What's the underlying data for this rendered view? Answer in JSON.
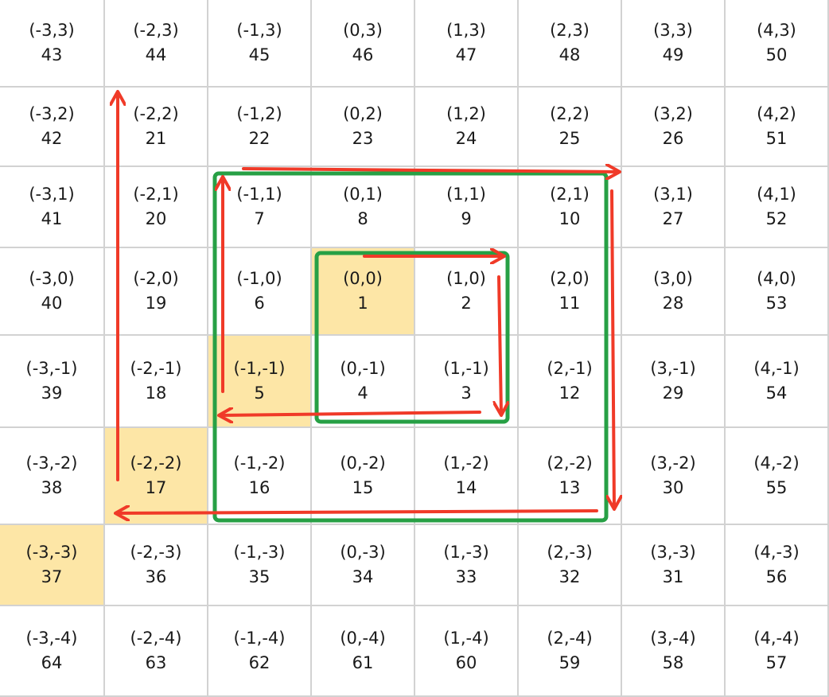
{
  "rows": [
    [
      {
        "coord": "(-3,3)",
        "num": "43"
      },
      {
        "coord": "(-2,3)",
        "num": "44"
      },
      {
        "coord": "(-1,3)",
        "num": "45"
      },
      {
        "coord": "(0,3)",
        "num": "46"
      },
      {
        "coord": "(1,3)",
        "num": "47"
      },
      {
        "coord": "(2,3)",
        "num": "48"
      },
      {
        "coord": "(3,3)",
        "num": "49"
      },
      {
        "coord": "(4,3)",
        "num": "50"
      }
    ],
    [
      {
        "coord": "(-3,2)",
        "num": "42"
      },
      {
        "coord": "(-2,2)",
        "num": "21"
      },
      {
        "coord": "(-1,2)",
        "num": "22"
      },
      {
        "coord": "(0,2)",
        "num": "23"
      },
      {
        "coord": "(1,2)",
        "num": "24"
      },
      {
        "coord": "(2,2)",
        "num": "25"
      },
      {
        "coord": "(3,2)",
        "num": "26"
      },
      {
        "coord": "(4,2)",
        "num": "51"
      }
    ],
    [
      {
        "coord": "(-3,1)",
        "num": "41"
      },
      {
        "coord": "(-2,1)",
        "num": "20"
      },
      {
        "coord": "(-1,1)",
        "num": "7"
      },
      {
        "coord": "(0,1)",
        "num": "8"
      },
      {
        "coord": "(1,1)",
        "num": "9"
      },
      {
        "coord": "(2,1)",
        "num": "10"
      },
      {
        "coord": "(3,1)",
        "num": "27"
      },
      {
        "coord": "(4,1)",
        "num": "52"
      }
    ],
    [
      {
        "coord": "(-3,0)",
        "num": "40"
      },
      {
        "coord": "(-2,0)",
        "num": "19"
      },
      {
        "coord": "(-1,0)",
        "num": "6"
      },
      {
        "coord": "(0,0)",
        "num": "1",
        "highlight": true
      },
      {
        "coord": "(1,0)",
        "num": "2"
      },
      {
        "coord": "(2,0)",
        "num": "11"
      },
      {
        "coord": "(3,0)",
        "num": "28"
      },
      {
        "coord": "(4,0)",
        "num": "53"
      }
    ],
    [
      {
        "coord": "(-3,-1)",
        "num": "39"
      },
      {
        "coord": "(-2,-1)",
        "num": "18"
      },
      {
        "coord": "(-1,-1)",
        "num": "5",
        "highlight": true
      },
      {
        "coord": "(0,-1)",
        "num": "4"
      },
      {
        "coord": "(1,-1)",
        "num": "3"
      },
      {
        "coord": "(2,-1)",
        "num": "12"
      },
      {
        "coord": "(3,-1)",
        "num": "29"
      },
      {
        "coord": "(4,-1)",
        "num": "54"
      }
    ],
    [
      {
        "coord": "(-3,-2)",
        "num": "38"
      },
      {
        "coord": "(-2,-2)",
        "num": "17",
        "highlight": true
      },
      {
        "coord": "(-1,-2)",
        "num": "16"
      },
      {
        "coord": "(0,-2)",
        "num": "15"
      },
      {
        "coord": "(1,-2)",
        "num": "14"
      },
      {
        "coord": "(2,-2)",
        "num": "13"
      },
      {
        "coord": "(3,-2)",
        "num": "30"
      },
      {
        "coord": "(4,-2)",
        "num": "55"
      }
    ],
    [
      {
        "coord": "(-3,-3)",
        "num": "37",
        "highlight": true
      },
      {
        "coord": "(-2,-3)",
        "num": "36"
      },
      {
        "coord": "(-1,-3)",
        "num": "35"
      },
      {
        "coord": "(0,-3)",
        "num": "34"
      },
      {
        "coord": "(1,-3)",
        "num": "33"
      },
      {
        "coord": "(2,-3)",
        "num": "32"
      },
      {
        "coord": "(3,-3)",
        "num": "31"
      },
      {
        "coord": "(4,-3)",
        "num": "56"
      }
    ],
    [
      {
        "coord": "(-3,-4)",
        "num": "64"
      },
      {
        "coord": "(-2,-4)",
        "num": "63"
      },
      {
        "coord": "(-1,-4)",
        "num": "62"
      },
      {
        "coord": "(0,-4)",
        "num": "61"
      },
      {
        "coord": "(1,-4)",
        "num": "60"
      },
      {
        "coord": "(2,-4)",
        "num": "59"
      },
      {
        "coord": "(3,-4)",
        "num": "58"
      },
      {
        "coord": "(4,-4)",
        "num": "57"
      }
    ]
  ],
  "colors": {
    "highlight": "#fde6a6",
    "arrow": "#f03a28",
    "ring": "#27a045",
    "gridline": "#d2d2d2"
  }
}
